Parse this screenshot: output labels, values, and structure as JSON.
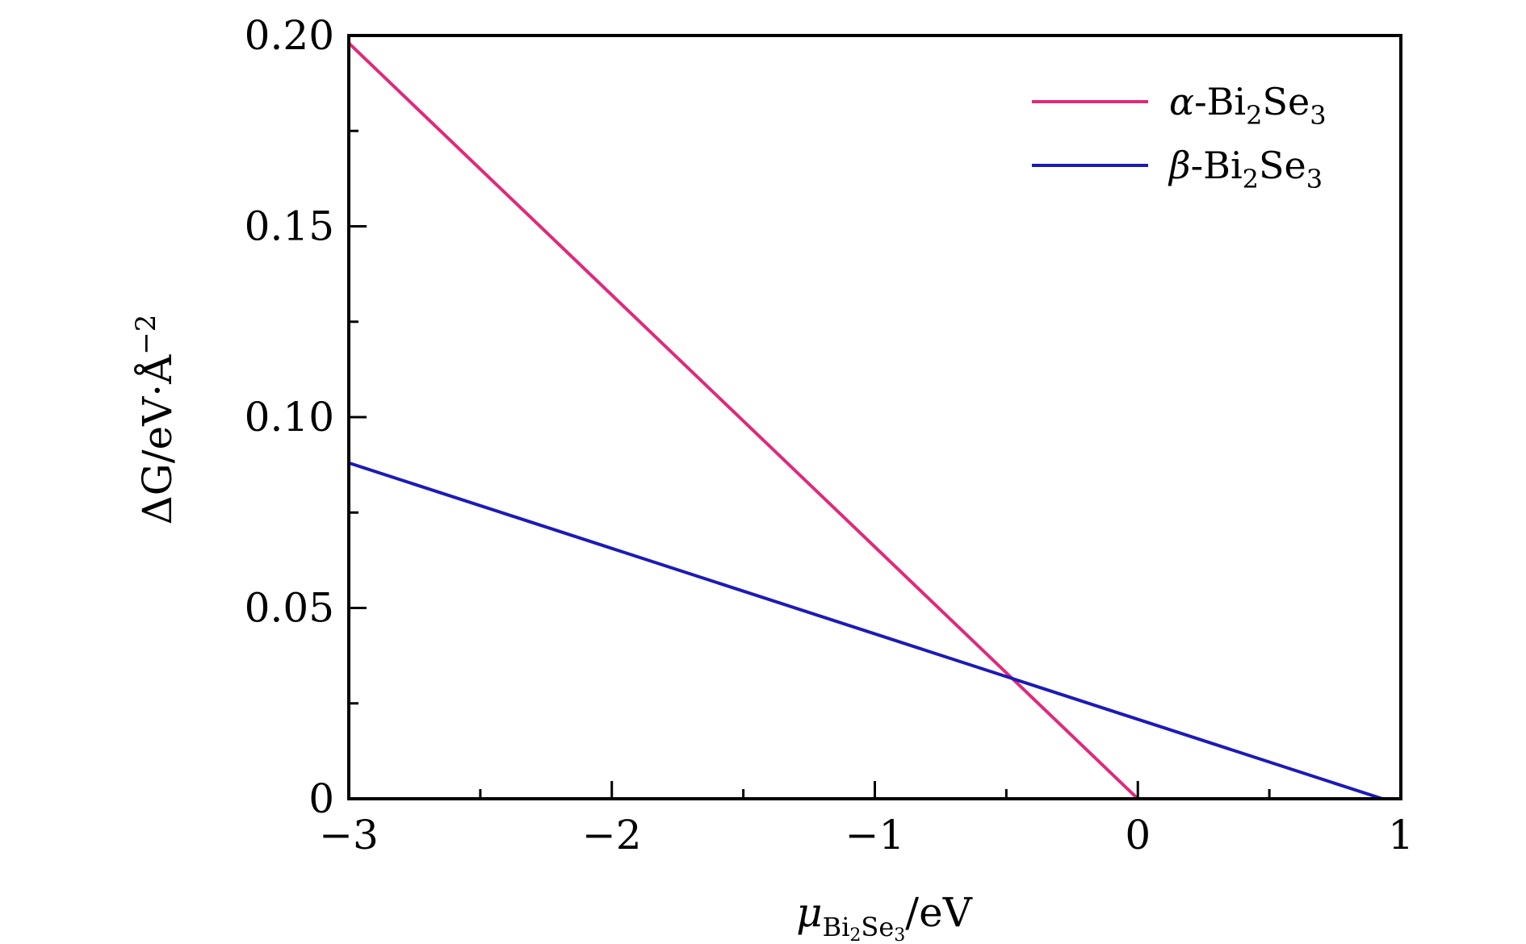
{
  "chart_data": {
    "type": "line",
    "x_axis": {
      "label_symbol": "μ",
      "label_subscript": [
        "Bi",
        "2",
        "Se",
        "3"
      ],
      "label_unit": "/eV",
      "min": -3,
      "max": 1,
      "ticks": [
        -3,
        -2,
        -1,
        0,
        1
      ],
      "tick_labels": [
        "−3",
        "−2",
        "−1",
        "0",
        "1"
      ],
      "minor_ticks": [
        -2.5,
        -1.5,
        -0.5,
        0.5
      ]
    },
    "y_axis": {
      "label_main": "ΔG/eV·Å",
      "label_superscript": "−2",
      "min": 0,
      "max": 0.2,
      "ticks": [
        0,
        0.05,
        0.1,
        0.15,
        0.2
      ],
      "tick_labels": [
        "0",
        "0.05",
        "0.10",
        "0.15",
        "0.20"
      ],
      "minor_ticks": [
        0.025,
        0.075,
        0.125,
        0.175
      ]
    },
    "grid": false,
    "legend_position": "top-right",
    "series": [
      {
        "name_symbol": "α",
        "name_rest": [
          "-Bi",
          "2",
          "Se",
          "3"
        ],
        "color": "#e0297a",
        "x": [
          -3,
          0
        ],
        "y": [
          0.198,
          0.0
        ]
      },
      {
        "name_symbol": "β",
        "name_rest": [
          "-Bi",
          "2",
          "Se",
          "3"
        ],
        "color": "#1c1ab8",
        "x": [
          -3,
          0.93
        ],
        "y": [
          0.088,
          0.0
        ]
      }
    ]
  }
}
